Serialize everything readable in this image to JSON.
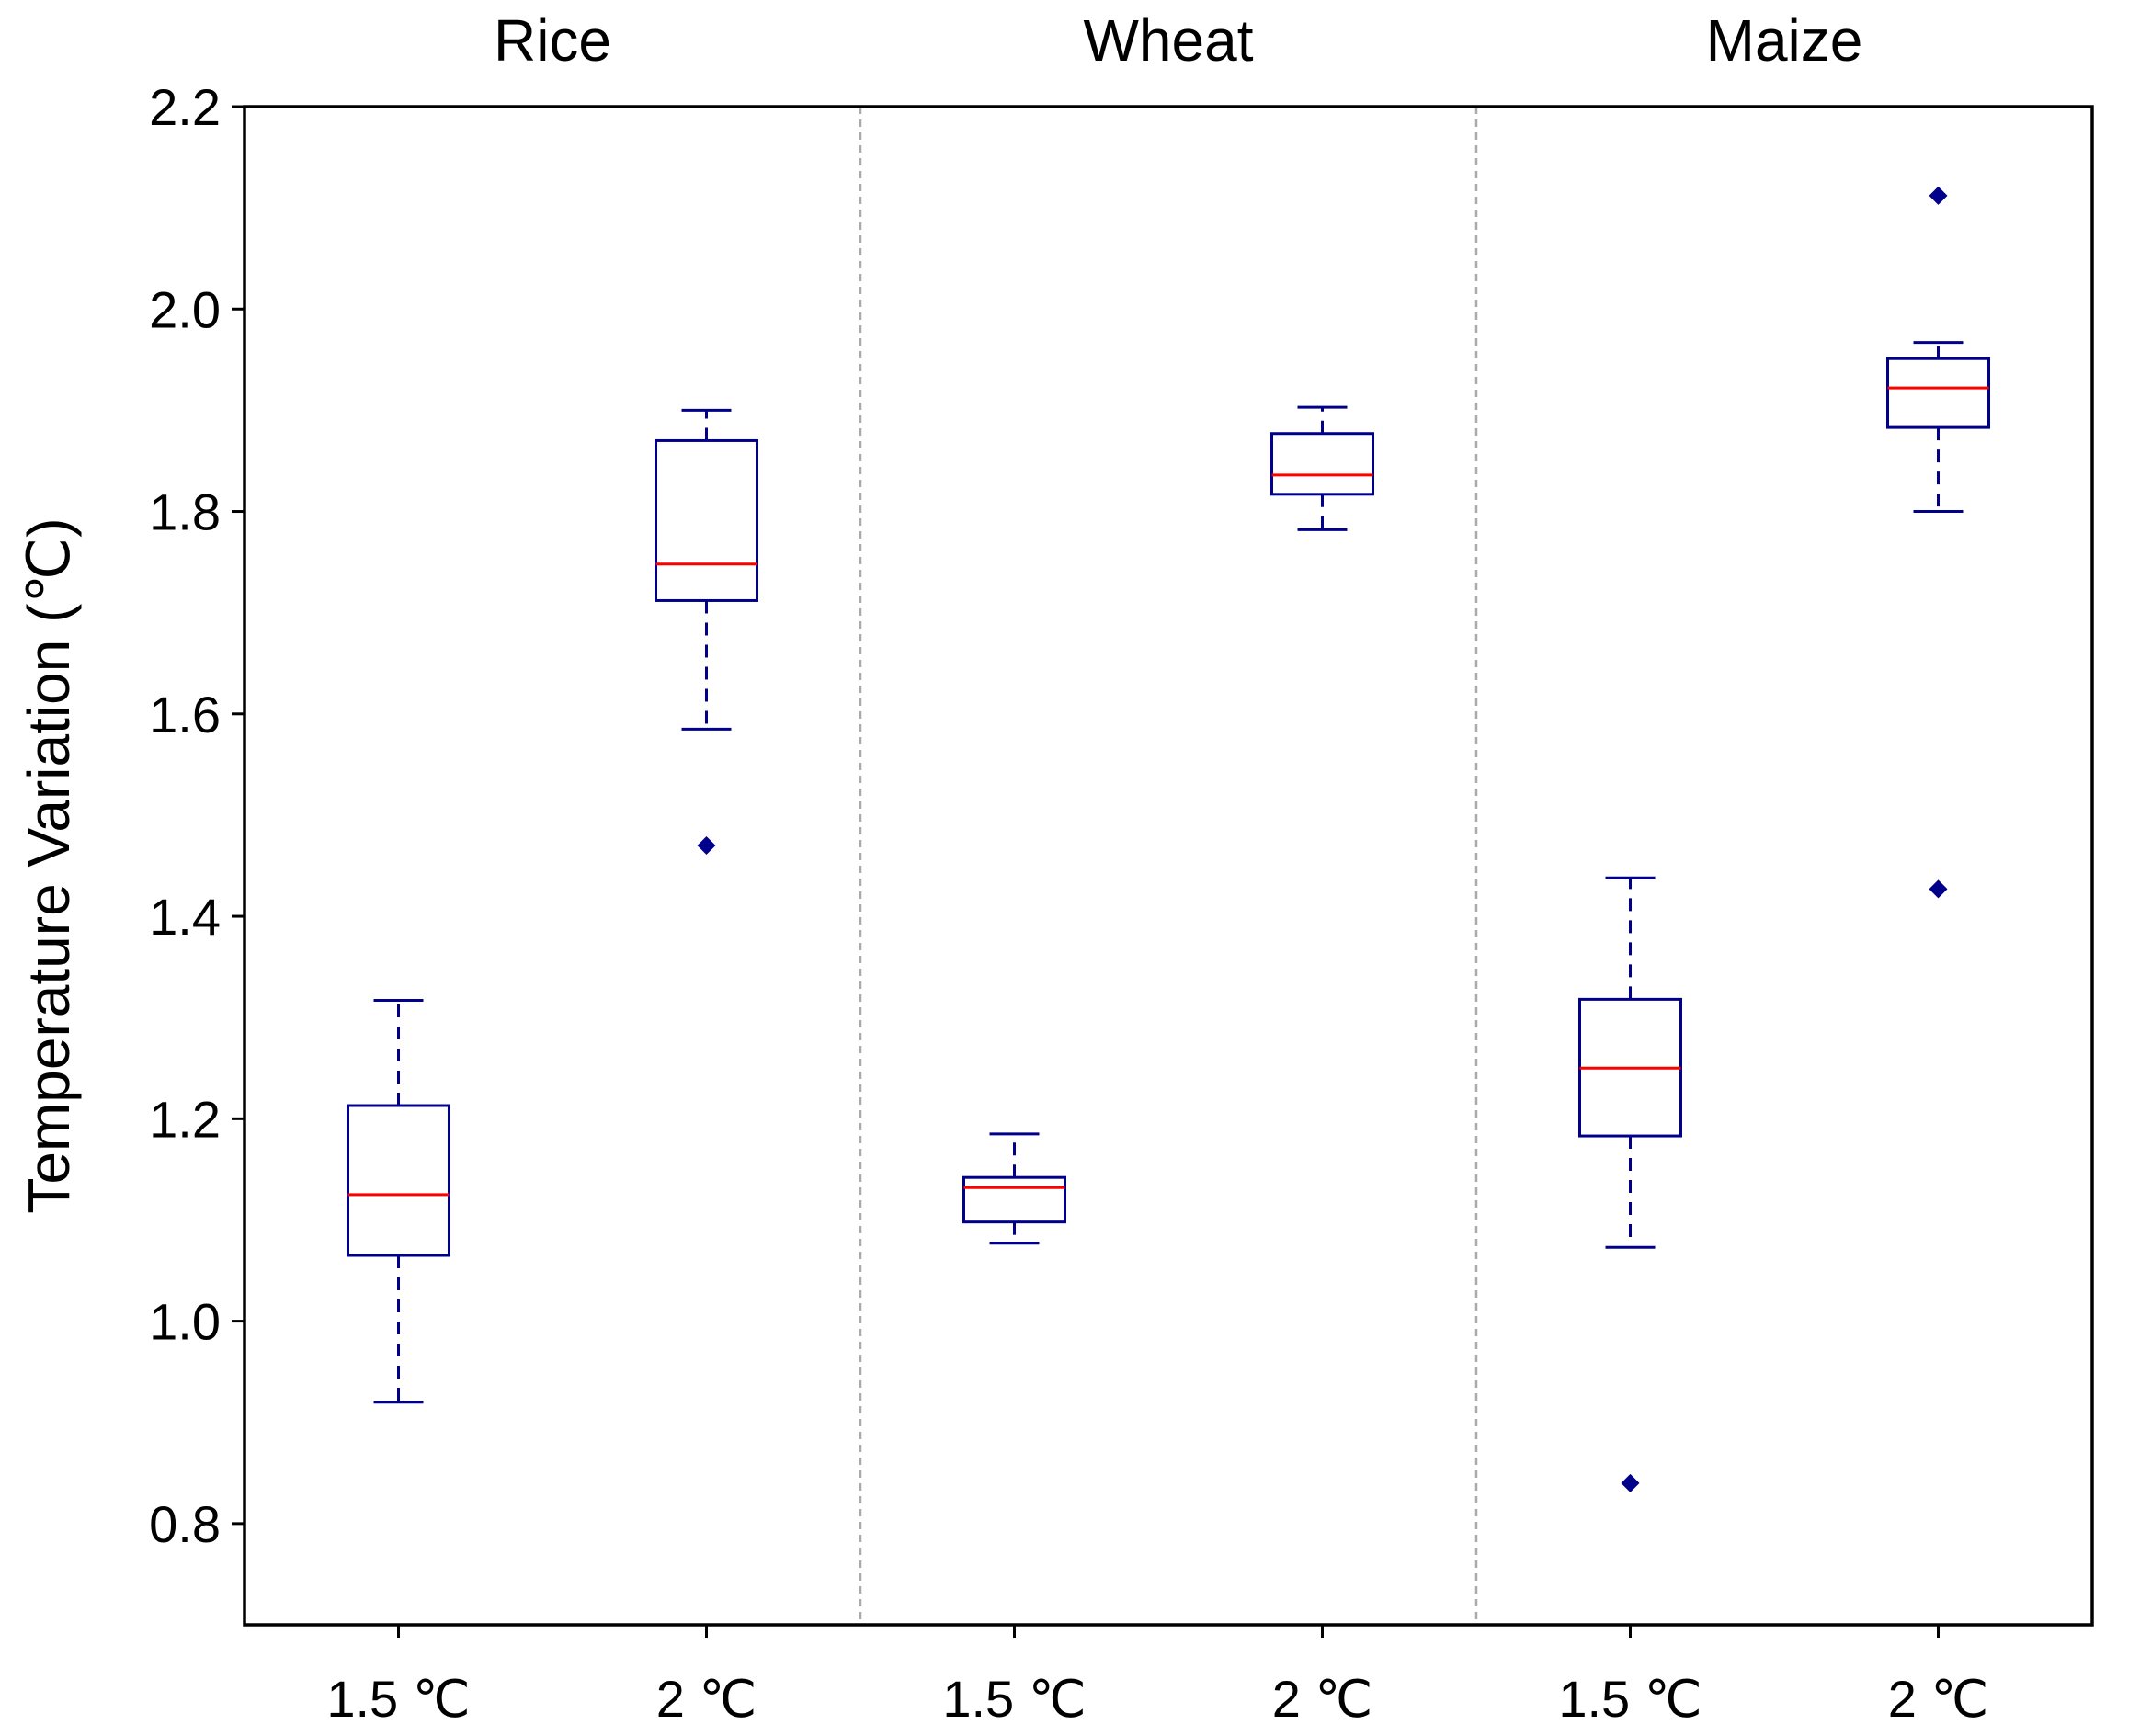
{
  "colors": {
    "box": "#00008B",
    "median": "#FF0000",
    "outlier": "#00008B",
    "divider": "#AAAAAA",
    "axis": "#000000"
  },
  "chart_data": {
    "type": "box",
    "ylabel": "Temperature Variation (℃)",
    "ylim": [
      0.7,
      2.2
    ],
    "yticks": [
      0.8,
      1.0,
      1.2,
      1.4,
      1.6,
      1.8,
      2.0,
      2.2
    ],
    "ytick_labels": [
      "0.8",
      "1.0",
      "1.2",
      "1.4",
      "1.6",
      "1.8",
      "2.0",
      "2.2"
    ],
    "grid": false,
    "panels": [
      {
        "title": "Rice",
        "boxes": [
          {
            "label": "1.5 ℃",
            "whisker_low": 0.92,
            "q1": 1.065,
            "median": 1.125,
            "q3": 1.213,
            "whisker_high": 1.317,
            "outliers": []
          },
          {
            "label": "2 ℃",
            "whisker_low": 1.585,
            "q1": 1.712,
            "median": 1.748,
            "q3": 1.87,
            "whisker_high": 1.9,
            "outliers": [
              1.47
            ]
          }
        ]
      },
      {
        "title": "Wheat",
        "boxes": [
          {
            "label": "1.5 ℃",
            "whisker_low": 1.077,
            "q1": 1.098,
            "median": 1.132,
            "q3": 1.142,
            "whisker_high": 1.185,
            "outliers": []
          },
          {
            "label": "2 ℃",
            "whisker_low": 1.782,
            "q1": 1.817,
            "median": 1.836,
            "q3": 1.877,
            "whisker_high": 1.903,
            "outliers": []
          }
        ]
      },
      {
        "title": "Maize",
        "boxes": [
          {
            "label": "1.5 ℃",
            "whisker_low": 1.073,
            "q1": 1.183,
            "median": 1.25,
            "q3": 1.318,
            "whisker_high": 1.438,
            "outliers": [
              0.84
            ]
          },
          {
            "label": "2 ℃",
            "whisker_low": 1.8,
            "q1": 1.883,
            "median": 1.922,
            "q3": 1.951,
            "whisker_high": 1.967,
            "outliers": [
              2.112,
              1.427
            ]
          }
        ]
      }
    ]
  }
}
